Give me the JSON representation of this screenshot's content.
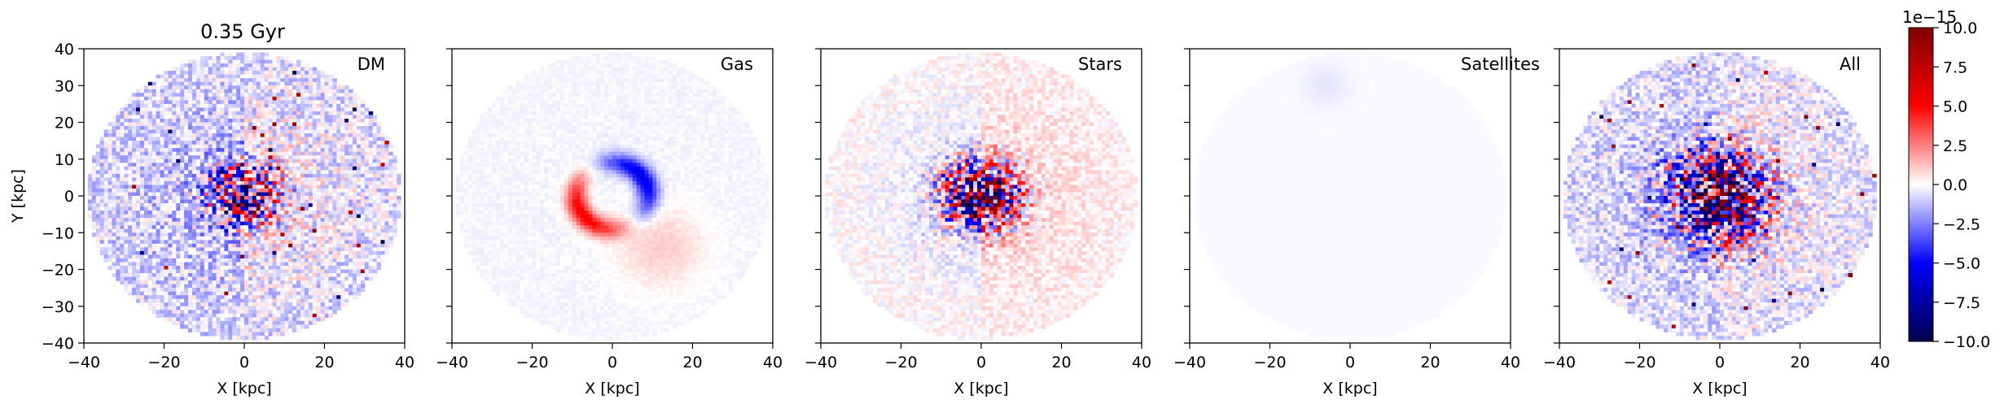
{
  "figure": {
    "title": "0.35 Gyr"
  },
  "colorbar": {
    "offset_label": "1e−15",
    "ticks": [
      "10.0",
      "7.5",
      "5.0",
      "2.5",
      "0.0",
      "−2.5",
      "−5.0",
      "−7.5",
      "−10.0"
    ],
    "tick_values": [
      10.0,
      7.5,
      5.0,
      2.5,
      0.0,
      -2.5,
      -5.0,
      -7.5,
      -10.0
    ],
    "vmin": -10.0,
    "vmax": 10.0,
    "colormap": "seismic",
    "colors": {
      "low": "#00004c",
      "mid_low": "#0000ff",
      "zero": "#ffffff",
      "mid_high": "#ff0000",
      "high": "#800000"
    }
  },
  "chart_data": [
    {
      "type": "heatmap",
      "label": "DM",
      "xlabel": "X [kpc]",
      "ylabel": "Y [kpc]",
      "xlim": [
        -40,
        40
      ],
      "ylim": [
        -40,
        40
      ],
      "xticks": [
        "−40",
        "−20",
        "0",
        "20",
        "40"
      ],
      "yticks": [
        "40",
        "30",
        "20",
        "10",
        "0",
        "−10",
        "−20",
        "−30",
        "−40"
      ],
      "field": {
        "disk_radius": 39,
        "core_amp": 8.0,
        "core_radius": 6.0,
        "noise": 2.6,
        "speckle": 0.35,
        "background": -0.6
      }
    },
    {
      "type": "heatmap",
      "label": "Gas",
      "xlabel": "X [kpc]",
      "xlim": [
        -40,
        40
      ],
      "ylim": [
        -40,
        40
      ],
      "xticks": [
        "−40",
        "−20",
        "0",
        "20",
        "40"
      ],
      "field": {
        "disk_radius": 39,
        "ring_radius": 9.0,
        "ring_amp": 5.5,
        "noise": 0.3,
        "background": -0.2
      }
    },
    {
      "type": "heatmap",
      "label": "Stars",
      "xlabel": "X [kpc]",
      "xlim": [
        -40,
        40
      ],
      "ylim": [
        -40,
        40
      ],
      "xticks": [
        "−40",
        "−20",
        "0",
        "20",
        "40"
      ],
      "field": {
        "disk_radius": 39,
        "core_amp": 10.0,
        "core_radius": 6.5,
        "noise": 1.2,
        "background": 0.2
      }
    },
    {
      "type": "heatmap",
      "label": "Satellites",
      "xlabel": "X [kpc]",
      "xlim": [
        -40,
        40
      ],
      "ylim": [
        -40,
        40
      ],
      "xticks": [
        "−40",
        "−20",
        "0",
        "20",
        "40"
      ],
      "field": {
        "disk_radius": 39,
        "blob_center": [
          -6,
          30
        ],
        "blob_amp": -0.4,
        "noise": 0.0,
        "background": -0.12
      }
    },
    {
      "type": "heatmap",
      "label": "All",
      "xlabel": "X [kpc]",
      "xlim": [
        -40,
        40
      ],
      "ylim": [
        -40,
        40
      ],
      "xticks": [
        "−40",
        "−20",
        "0",
        "20",
        "40"
      ],
      "field": {
        "disk_radius": 39,
        "core_amp": 9.0,
        "core_radius": 9.0,
        "noise": 2.4,
        "speckle": 0.3,
        "background": -0.5
      }
    }
  ]
}
